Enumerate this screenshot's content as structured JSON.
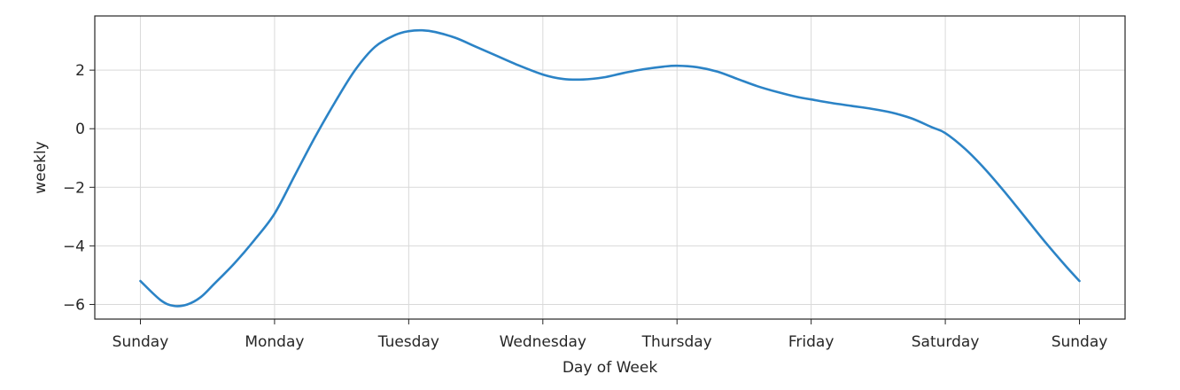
{
  "chart_data": {
    "type": "line",
    "title": "",
    "xlabel": "Day of Week",
    "ylabel": "weekly",
    "x_ticks": [
      "Sunday",
      "Monday",
      "Tuesday",
      "Wednesday",
      "Thursday",
      "Friday",
      "Saturday",
      "Sunday"
    ],
    "y_ticks": [
      2,
      0,
      -2,
      -4,
      -6
    ],
    "y_tick_labels": [
      "2",
      "0",
      "−2",
      "−4",
      "−6"
    ],
    "xlim": [
      -0.34,
      7.34
    ],
    "ylim": [
      -6.5,
      3.85
    ],
    "grid": true,
    "line_color": "#2b83c6",
    "series": [
      {
        "x": [
          0.0,
          0.15,
          0.25,
          0.35,
          0.45,
          0.55,
          0.7,
          0.85,
          1.0,
          1.15,
          1.3,
          1.45,
          1.6,
          1.75,
          1.9,
          2.0,
          2.1,
          2.2,
          2.35,
          2.5,
          2.65,
          2.8,
          3.0,
          3.15,
          3.3,
          3.45,
          3.6,
          3.75,
          3.9,
          4.0,
          4.15,
          4.3,
          4.45,
          4.6,
          4.75,
          4.9,
          5.0,
          5.15,
          5.3,
          5.45,
          5.6,
          5.75,
          5.9,
          6.0,
          6.15,
          6.3,
          6.45,
          6.6,
          6.75,
          6.9,
          7.0
        ],
        "y": [
          -5.2,
          -5.85,
          -6.05,
          -6.0,
          -5.75,
          -5.3,
          -4.6,
          -3.8,
          -2.9,
          -1.6,
          -0.3,
          0.9,
          2.0,
          2.8,
          3.2,
          3.33,
          3.36,
          3.3,
          3.1,
          2.8,
          2.5,
          2.2,
          1.85,
          1.7,
          1.68,
          1.75,
          1.9,
          2.03,
          2.12,
          2.15,
          2.1,
          1.95,
          1.7,
          1.45,
          1.25,
          1.08,
          1.0,
          0.88,
          0.78,
          0.68,
          0.55,
          0.35,
          0.05,
          -0.15,
          -0.7,
          -1.4,
          -2.2,
          -3.05,
          -3.9,
          -4.7,
          -5.2
        ]
      }
    ]
  }
}
